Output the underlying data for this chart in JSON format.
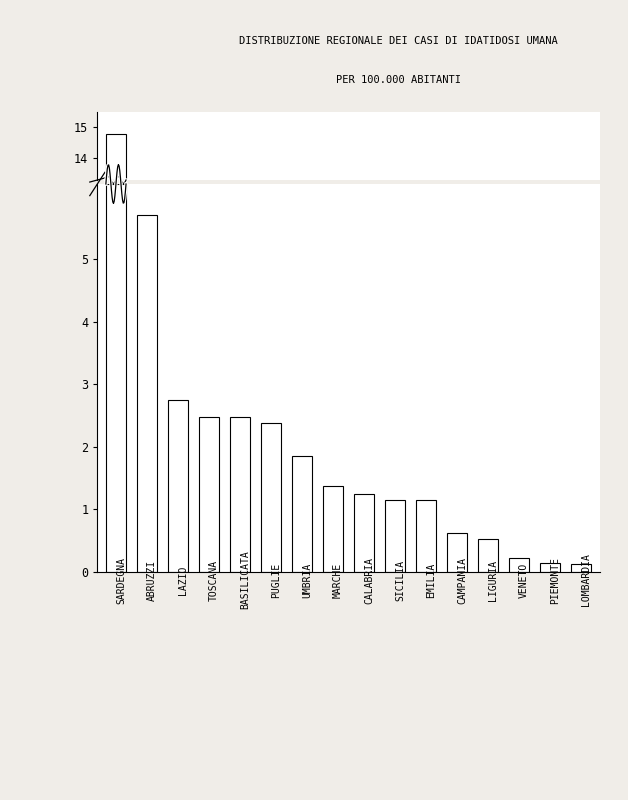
{
  "categories": [
    "SARDEGNA",
    "ABRUZZI",
    "LAZIO",
    "TOSCANA",
    "BASILICATA",
    "PUGLIE",
    "UMBRIA",
    "MARCHE",
    "CALABRIA",
    "SICILIA",
    "EMILIA",
    "CAMPANIA",
    "LIGURIA",
    "VENETO",
    "PIEMONTE",
    "LOMBARDIA"
  ],
  "values": [
    14.8,
    5.7,
    2.75,
    2.48,
    2.47,
    2.38,
    1.85,
    1.38,
    1.25,
    1.15,
    1.15,
    0.62,
    0.52,
    0.22,
    0.14,
    0.12
  ],
  "title_line1": "DISTRIBUZIONE REGIONALE DEI CASI DI IDATIDOSI UMANA",
  "title_line2": "PER 100.000 ABITANTI",
  "bar_color": "white",
  "bar_edgecolor": "black",
  "background_color": "white",
  "yticks_lower": [
    0,
    1,
    2,
    3,
    4,
    5
  ],
  "yticks_upper": [
    14,
    15
  ],
  "ylim_lower": [
    0,
    6.2
  ],
  "ylim_upper": [
    13.3,
    15.5
  ],
  "bar_linewidth": 0.8,
  "page_bg": "#f0ede8",
  "inner_bg": "white",
  "title_fontsize": 7.5,
  "tick_fontsize": 8.5,
  "label_fontsize": 7.0
}
